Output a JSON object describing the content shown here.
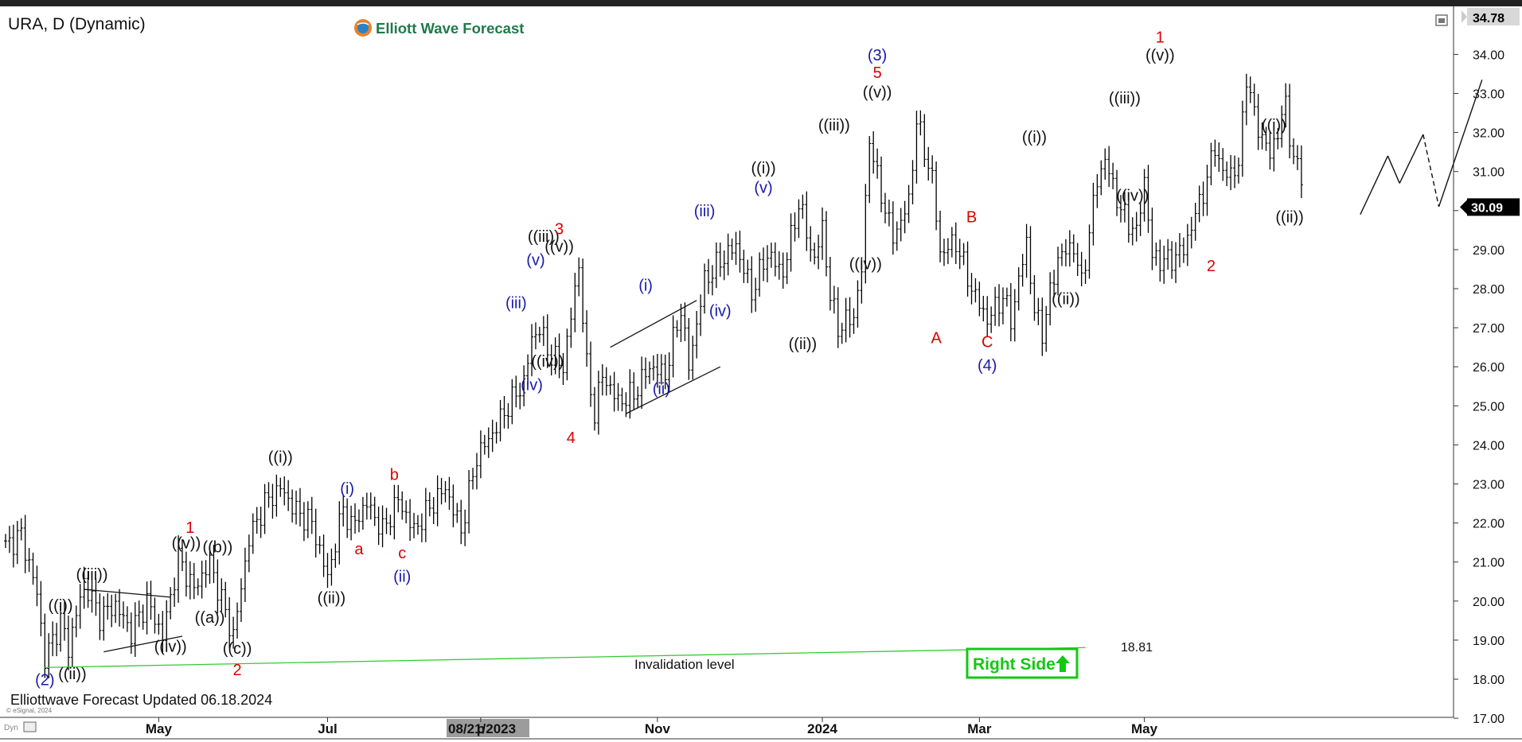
{
  "header": {
    "symbol": "URA, D (Dynamic)",
    "brand": "Elliott Wave Forecast"
  },
  "footer": {
    "updated": "Elliottwave Forecast Updated 06.18.2024",
    "copyright": "© eSignal, 2024",
    "dyn": "Dyn",
    "date_highlight": "08/21/2023"
  },
  "badge": {
    "label": "Right Side"
  },
  "colors": {
    "bars": "#000000",
    "red": "#dd0000",
    "blue": "#1a1aa8",
    "green_line": "#33cc33",
    "badge_green": "#14c814"
  },
  "chart_data": {
    "type": "bar",
    "title": "URA, D (Dynamic)",
    "ylim": [
      17.0,
      34.78
    ],
    "y_ticks": [
      "17.00",
      "18.00",
      "19.00",
      "20.00",
      "21.00",
      "22.00",
      "23.00",
      "24.00",
      "25.00",
      "26.00",
      "27.00",
      "28.00",
      "29.00",
      "30.00",
      "31.00",
      "32.00",
      "33.00",
      "34.00"
    ],
    "x_ticks": [
      {
        "label": "May",
        "i": 39
      },
      {
        "label": "Jul",
        "i": 82
      },
      {
        "label": "p",
        "i": 121
      },
      {
        "label": "Nov",
        "i": 166
      },
      {
        "label": "2024",
        "i": 208
      },
      {
        "label": "Mar",
        "i": 248
      },
      {
        "label": "May",
        "i": 290
      }
    ],
    "last_price": "30.09",
    "top_price": "34.78",
    "invalidation": {
      "value": 18.81,
      "label": "18.81",
      "text": "Invalidation level",
      "from_i": 10,
      "from_v": 18.3,
      "to_i": 275
    },
    "bars_count": 331,
    "pivots": [
      [
        0,
        21.4
      ],
      [
        4,
        21.7
      ],
      [
        8,
        20.2
      ],
      [
        10,
        18.5
      ],
      [
        14,
        19.5
      ],
      [
        16,
        18.8
      ],
      [
        20,
        20.5
      ],
      [
        24,
        19.6
      ],
      [
        28,
        19.9
      ],
      [
        32,
        19.2
      ],
      [
        36,
        20.0
      ],
      [
        40,
        19.1
      ],
      [
        44,
        21.1
      ],
      [
        48,
        20.3
      ],
      [
        52,
        21.0
      ],
      [
        56,
        19.7
      ],
      [
        58,
        19.1
      ],
      [
        62,
        21.6
      ],
      [
        66,
        22.5
      ],
      [
        70,
        22.9
      ],
      [
        74,
        22.3
      ],
      [
        78,
        22.0
      ],
      [
        82,
        20.6
      ],
      [
        86,
        22.4
      ],
      [
        88,
        21.9
      ],
      [
        92,
        22.5
      ],
      [
        96,
        21.8
      ],
      [
        100,
        22.6
      ],
      [
        104,
        21.8
      ],
      [
        108,
        22.4
      ],
      [
        112,
        22.9
      ],
      [
        116,
        21.8
      ],
      [
        120,
        23.7
      ],
      [
        124,
        24.3
      ],
      [
        128,
        25.0
      ],
      [
        132,
        25.6
      ],
      [
        134,
        26.7
      ],
      [
        136,
        27.0
      ],
      [
        138,
        26.4
      ],
      [
        142,
        26.0
      ],
      [
        146,
        28.6
      ],
      [
        148,
        26.0
      ],
      [
        150,
        24.8
      ],
      [
        152,
        25.8
      ],
      [
        156,
        25.1
      ],
      [
        160,
        25.3
      ],
      [
        164,
        26.0
      ],
      [
        168,
        25.8
      ],
      [
        172,
        27.5
      ],
      [
        174,
        26.0
      ],
      [
        178,
        28.2
      ],
      [
        182,
        28.7
      ],
      [
        186,
        29.1
      ],
      [
        190,
        27.9
      ],
      [
        194,
        28.9
      ],
      [
        198,
        28.4
      ],
      [
        202,
        30.2
      ],
      [
        206,
        28.7
      ],
      [
        208,
        29.6
      ],
      [
        210,
        27.8
      ],
      [
        212,
        27.0
      ],
      [
        216,
        27.3
      ],
      [
        218,
        28.5
      ],
      [
        220,
        31.9
      ],
      [
        222,
        30.8
      ],
      [
        226,
        29.3
      ],
      [
        230,
        30.2
      ],
      [
        232,
        32.3
      ],
      [
        236,
        30.8
      ],
      [
        238,
        28.9
      ],
      [
        242,
        29.2
      ],
      [
        246,
        28.0
      ],
      [
        250,
        27.2
      ],
      [
        254,
        27.8
      ],
      [
        256,
        27.2
      ],
      [
        260,
        29.2
      ],
      [
        262,
        27.4
      ],
      [
        264,
        26.9
      ],
      [
        268,
        28.8
      ],
      [
        272,
        29.1
      ],
      [
        274,
        28.1
      ],
      [
        278,
        30.8
      ],
      [
        280,
        31.3
      ],
      [
        284,
        30.0
      ],
      [
        288,
        29.4
      ],
      [
        290,
        30.8
      ],
      [
        292,
        28.8
      ],
      [
        296,
        28.7
      ],
      [
        300,
        29.0
      ],
      [
        304,
        30.2
      ],
      [
        306,
        30.8
      ],
      [
        308,
        31.7
      ],
      [
        310,
        30.9
      ],
      [
        314,
        31.1
      ],
      [
        316,
        33.5
      ],
      [
        318,
        32.4
      ],
      [
        322,
        31.4
      ],
      [
        326,
        32.7
      ],
      [
        328,
        31.3
      ],
      [
        332,
        30.5
      ],
      [
        334,
        29.3
      ],
      [
        336,
        28.8
      ],
      [
        340,
        30.0
      ],
      [
        343,
        29.4
      ],
      [
        345,
        29.8
      ]
    ],
    "projection": [
      {
        "i": 345,
        "v": 29.9
      },
      {
        "i": 352,
        "v": 31.4
      },
      {
        "i": 355,
        "v": 30.7
      },
      {
        "i": 361,
        "v": 31.95
      },
      {
        "i": 365,
        "v": 30.1
      },
      {
        "i": 376,
        "v": 33.35
      }
    ],
    "channels": [
      [
        {
          "i": 20,
          "v": 20.3
        },
        {
          "i": 42,
          "v": 20.1
        }
      ],
      [
        {
          "i": 25,
          "v": 18.7
        },
        {
          "i": 45,
          "v": 19.1
        }
      ],
      [
        {
          "i": 154,
          "v": 26.5
        },
        {
          "i": 176,
          "v": 27.7
        }
      ],
      [
        {
          "i": 158,
          "v": 24.8
        },
        {
          "i": 182,
          "v": 26.0
        }
      ]
    ],
    "labels": [
      {
        "t": "((i))",
        "i": 14,
        "v": 19.75,
        "c": "k"
      },
      {
        "t": "((ii))",
        "i": 17,
        "v": 18.0,
        "c": "k"
      },
      {
        "t": "(2)",
        "i": 10,
        "v": 17.85,
        "c": "b"
      },
      {
        "t": "((iii))",
        "i": 22,
        "v": 20.55,
        "c": "k"
      },
      {
        "t": "((iv))",
        "i": 42,
        "v": 18.7,
        "c": "k"
      },
      {
        "t": "((v))",
        "i": 46,
        "v": 21.35,
        "c": "k"
      },
      {
        "t": "1",
        "i": 47,
        "v": 21.75,
        "c": "r"
      },
      {
        "t": "((b))",
        "i": 54,
        "v": 21.25,
        "c": "k"
      },
      {
        "t": "((a))",
        "i": 52,
        "v": 19.45,
        "c": "k"
      },
      {
        "t": "((c))",
        "i": 59,
        "v": 18.65,
        "c": "k"
      },
      {
        "t": "2",
        "i": 59,
        "v": 18.1,
        "c": "r"
      },
      {
        "t": "((i))",
        "i": 70,
        "v": 23.55,
        "c": "k"
      },
      {
        "t": "((ii))",
        "i": 83,
        "v": 19.95,
        "c": "k"
      },
      {
        "t": "(i)",
        "i": 87,
        "v": 22.75,
        "c": "b"
      },
      {
        "t": "a",
        "i": 90,
        "v": 21.2,
        "c": "r"
      },
      {
        "t": "b",
        "i": 99,
        "v": 23.1,
        "c": "r"
      },
      {
        "t": "c",
        "i": 101,
        "v": 21.1,
        "c": "r"
      },
      {
        "t": "(ii)",
        "i": 101,
        "v": 20.5,
        "c": "b"
      },
      {
        "t": "(iii)",
        "i": 130,
        "v": 27.5,
        "c": "b"
      },
      {
        "t": "(iv)",
        "i": 134,
        "v": 25.4,
        "c": "b"
      },
      {
        "t": "((iv))",
        "i": 138,
        "v": 26.0,
        "c": "k"
      },
      {
        "t": "(v)",
        "i": 135,
        "v": 28.6,
        "c": "b"
      },
      {
        "t": "((iii))",
        "i": 137,
        "v": 29.2,
        "c": "k"
      },
      {
        "t": "((v))",
        "i": 141,
        "v": 28.95,
        "c": "k"
      },
      {
        "t": "3",
        "i": 141,
        "v": 29.4,
        "c": "r"
      },
      {
        "t": "4",
        "i": 144,
        "v": 24.05,
        "c": "r"
      },
      {
        "t": "(i)",
        "i": 163,
        "v": 27.95,
        "c": "b"
      },
      {
        "t": "(ii)",
        "i": 167,
        "v": 25.3,
        "c": "b"
      },
      {
        "t": "(iii)",
        "i": 178,
        "v": 29.85,
        "c": "b"
      },
      {
        "t": "(iv)",
        "i": 182,
        "v": 27.3,
        "c": "b"
      },
      {
        "t": "(v)",
        "i": 193,
        "v": 30.45,
        "c": "b"
      },
      {
        "t": "((i))",
        "i": 193,
        "v": 30.95,
        "c": "k"
      },
      {
        "t": "((ii))",
        "i": 203,
        "v": 26.45,
        "c": "k"
      },
      {
        "t": "((iii))",
        "i": 211,
        "v": 32.05,
        "c": "k"
      },
      {
        "t": "((iv))",
        "i": 219,
        "v": 28.5,
        "c": "k"
      },
      {
        "t": "((v))",
        "i": 222,
        "v": 32.9,
        "c": "k"
      },
      {
        "t": "5",
        "i": 222,
        "v": 33.4,
        "c": "r"
      },
      {
        "t": "(3)",
        "i": 222,
        "v": 33.85,
        "c": "b"
      },
      {
        "t": "A",
        "i": 237,
        "v": 26.6,
        "c": "r"
      },
      {
        "t": "B",
        "i": 246,
        "v": 29.7,
        "c": "r"
      },
      {
        "t": "C",
        "i": 250,
        "v": 26.5,
        "c": "r"
      },
      {
        "t": "(4)",
        "i": 250,
        "v": 25.9,
        "c": "b"
      },
      {
        "t": "((i))",
        "i": 262,
        "v": 31.75,
        "c": "k"
      },
      {
        "t": "((ii))",
        "i": 270,
        "v": 27.6,
        "c": "k"
      },
      {
        "t": "((iii))",
        "i": 285,
        "v": 32.75,
        "c": "k"
      },
      {
        "t": "((iv))",
        "i": 287,
        "v": 30.25,
        "c": "k"
      },
      {
        "t": "((v))",
        "i": 294,
        "v": 33.85,
        "c": "k"
      },
      {
        "t": "1",
        "i": 294,
        "v": 34.3,
        "c": "r"
      },
      {
        "t": "2",
        "i": 307,
        "v": 28.45,
        "c": "r"
      },
      {
        "t": "((i))",
        "i": 323,
        "v": 32.05,
        "c": "k"
      },
      {
        "t": "((ii))",
        "i": 327,
        "v": 29.7,
        "c": "k"
      }
    ]
  }
}
